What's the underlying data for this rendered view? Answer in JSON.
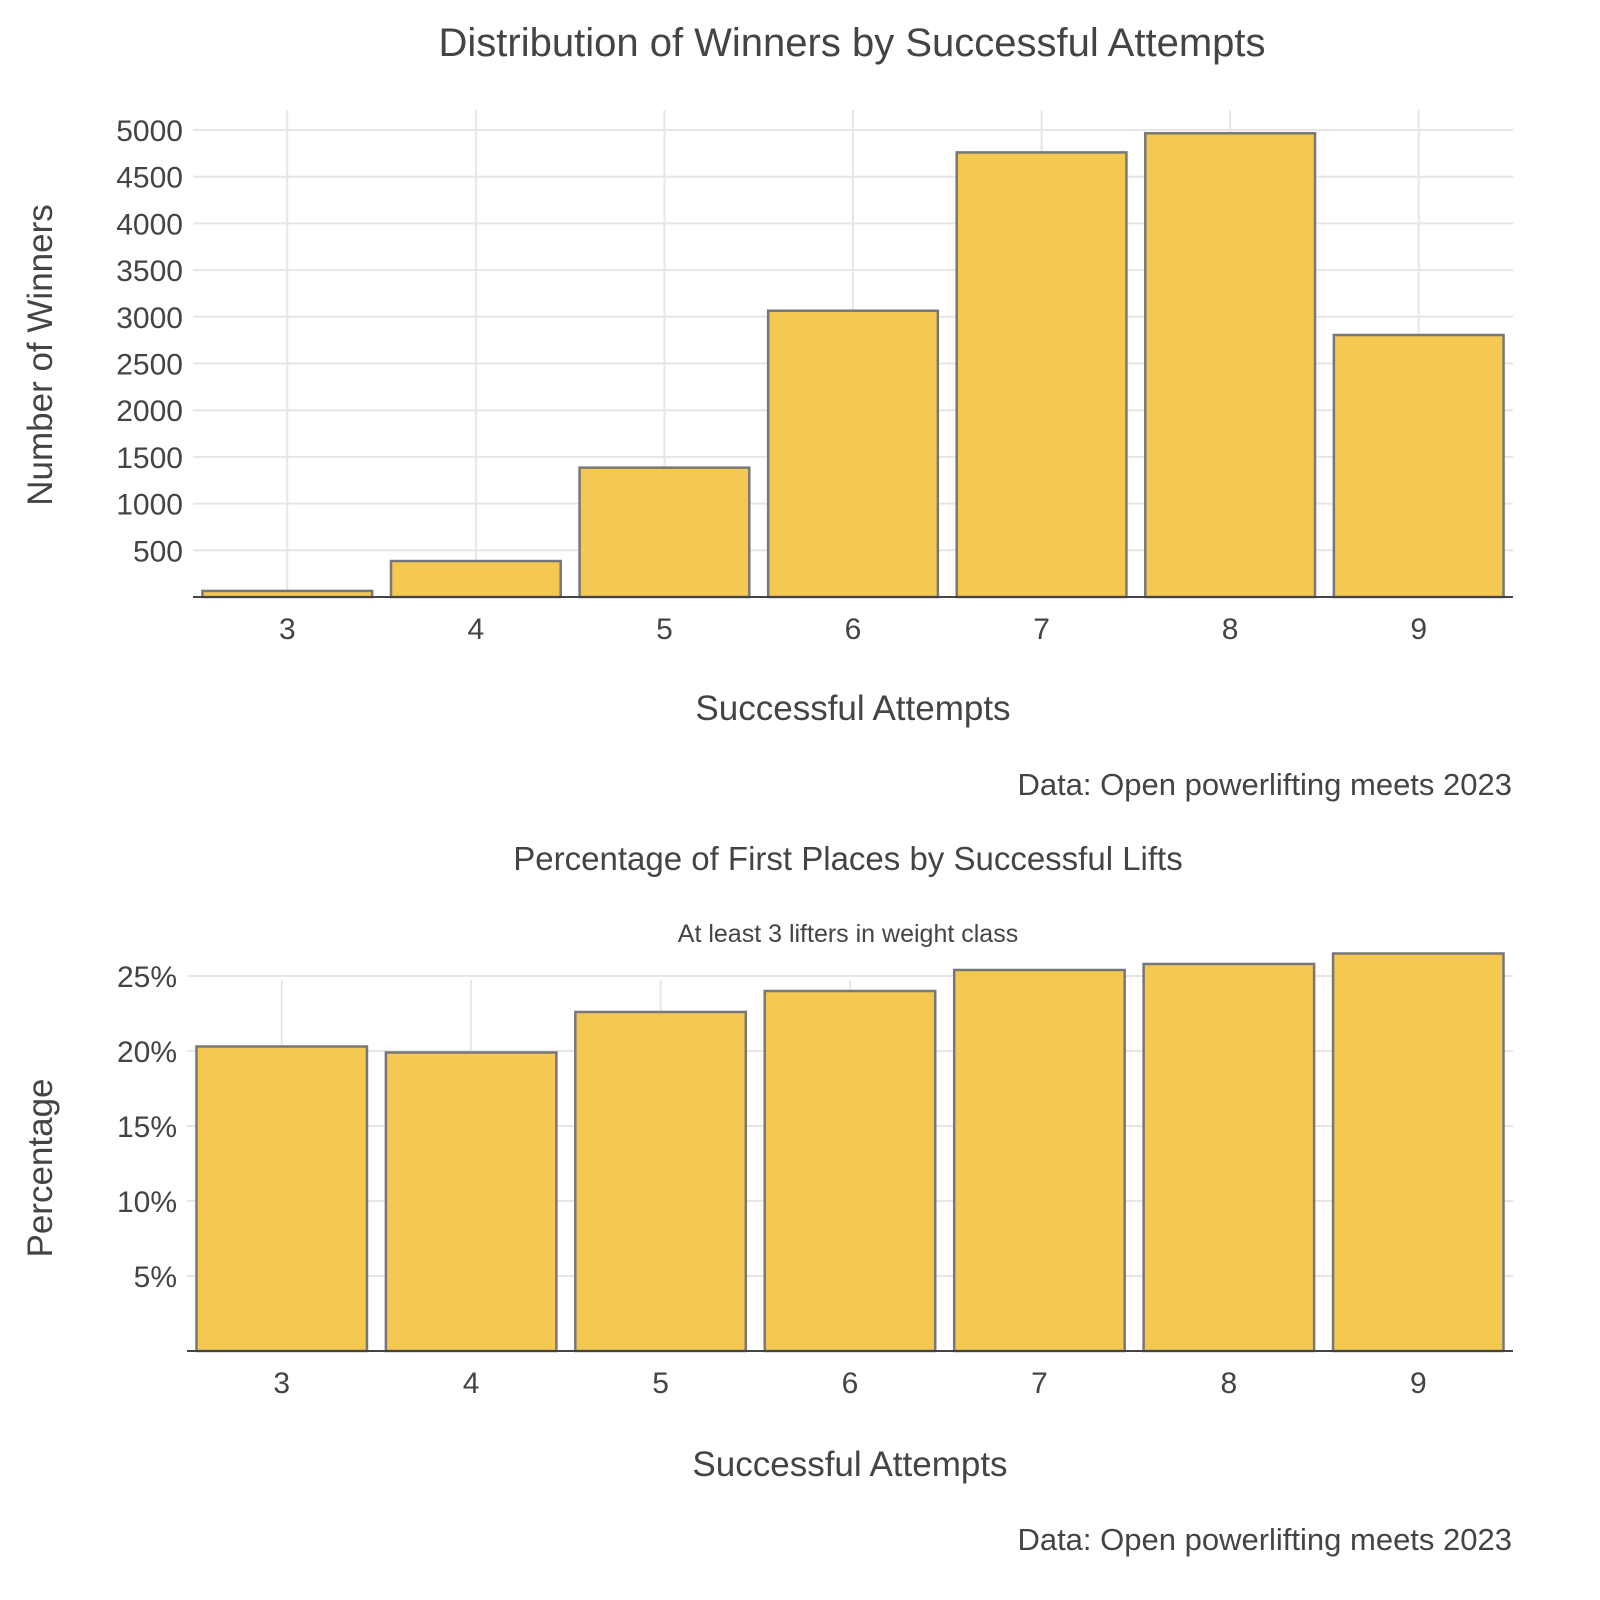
{
  "chart_data": [
    {
      "type": "bar",
      "title": "Distribution of Winners by Successful Attempts",
      "subtitle": "",
      "xlabel": "Successful Attempts",
      "ylabel": "Number of Winners",
      "caption": "Data: Open powerlifting meets 2023",
      "categories": [
        "3",
        "4",
        "5",
        "6",
        "7",
        "8",
        "9"
      ],
      "values": [
        65,
        385,
        1385,
        3065,
        4760,
        4965,
        2805
      ],
      "ylim": [
        0,
        5000
      ],
      "yticks": [
        500,
        1000,
        1500,
        2000,
        2500,
        3000,
        3500,
        4000,
        4500,
        5000
      ],
      "ytick_labels": [
        "500",
        "1000",
        "1500",
        "2000",
        "2500",
        "3000",
        "3500",
        "4000",
        "4500",
        "5000"
      ],
      "grid": true,
      "legend": "none"
    },
    {
      "type": "bar",
      "title": "Percentage of First Places by Successful Lifts",
      "subtitle": "At least 3 lifters in weight class",
      "xlabel": "Successful Attempts",
      "ylabel": "Percentage",
      "caption": "Data: Open powerlifting meets 2023",
      "categories": [
        "3",
        "4",
        "5",
        "6",
        "7",
        "8",
        "9"
      ],
      "values": [
        20.3,
        19.9,
        22.6,
        24.0,
        25.4,
        25.8,
        26.5
      ],
      "ylim": [
        0,
        27
      ],
      "yticks": [
        5,
        10,
        15,
        20,
        25
      ],
      "ytick_labels": [
        "5%",
        "10%",
        "15%",
        "20%",
        "25%"
      ],
      "grid": true,
      "legend": "none"
    }
  ],
  "colors": {
    "bar_fill": "#f5c852",
    "bar_stroke": "#777777",
    "grid": "#e6e6e6",
    "axis": "#444444",
    "text": "#444444"
  }
}
